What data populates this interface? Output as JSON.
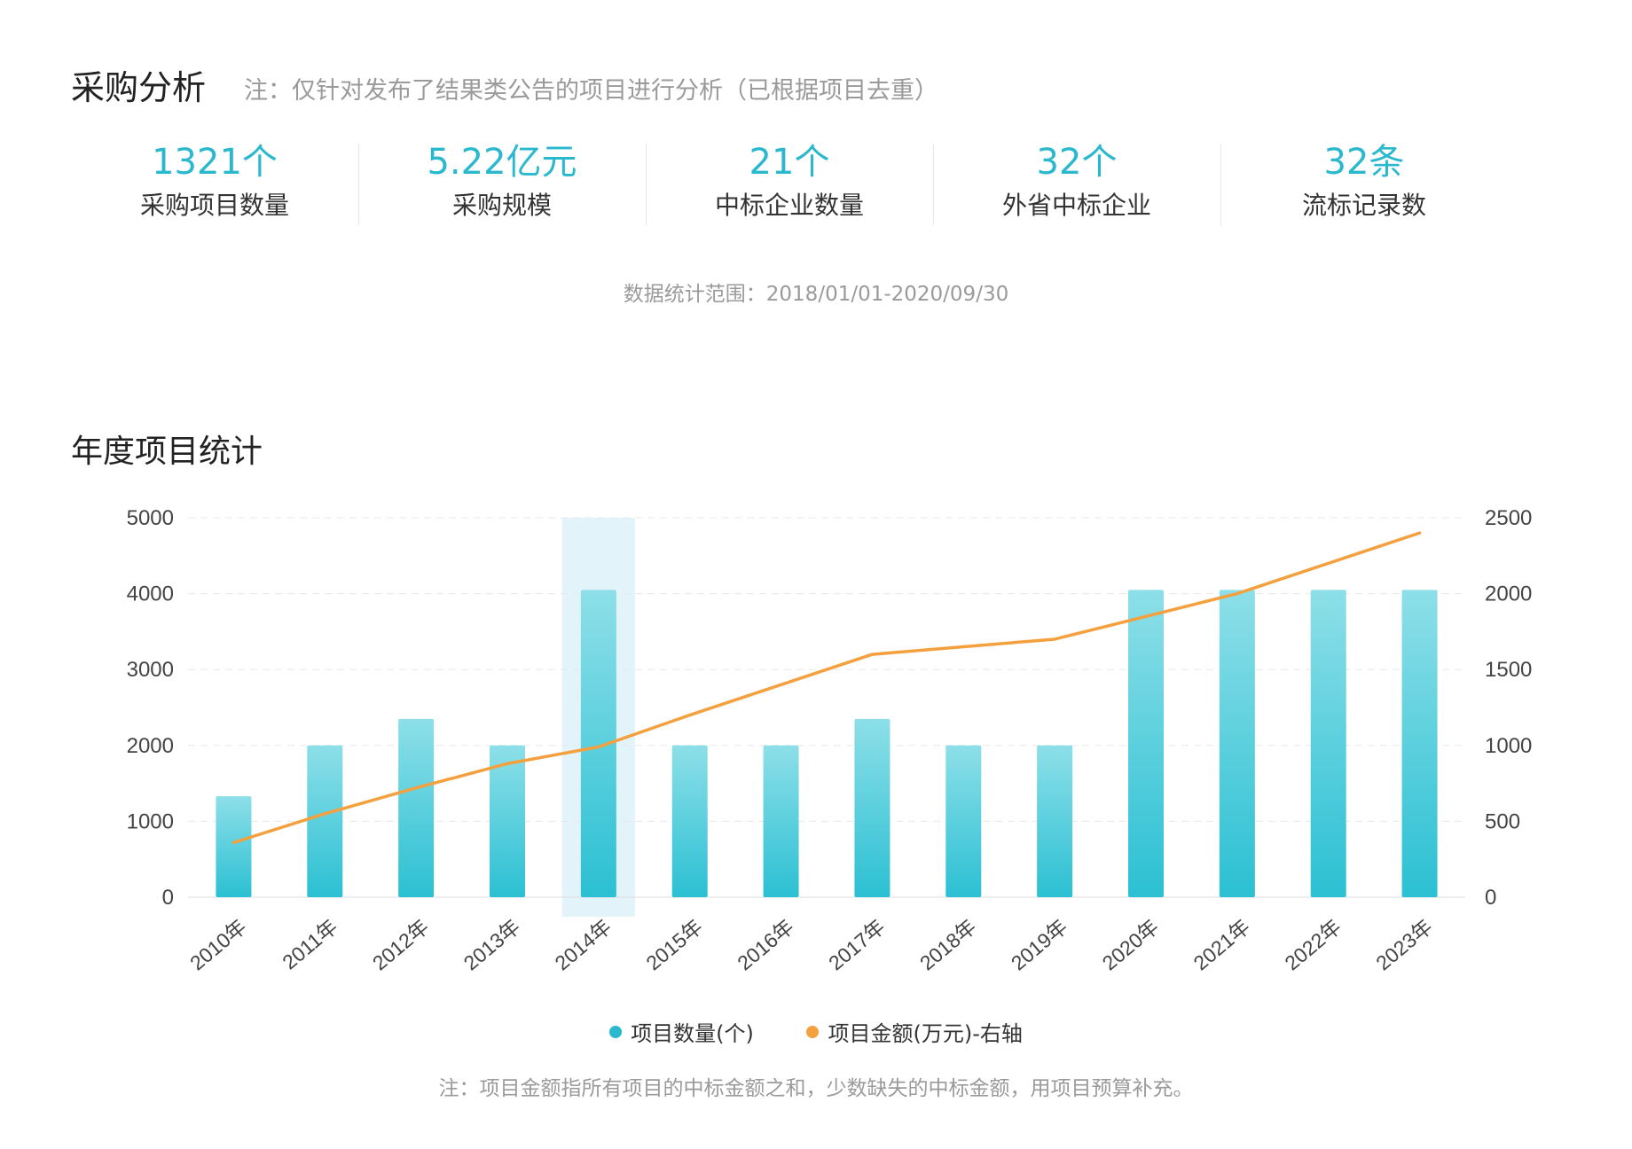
{
  "header": {
    "title": "采购分析",
    "note": "注：仅针对发布了结果类公告的项目进行分析（已根据项目去重）"
  },
  "stats": [
    {
      "value": "1321个",
      "label": "采购项目数量"
    },
    {
      "value": "5.22亿元",
      "label": "采购规模"
    },
    {
      "value": "21个",
      "label": "中标企业数量"
    },
    {
      "value": "32个",
      "label": "外省中标企业"
    },
    {
      "value": "32条",
      "label": "流标记录数"
    }
  ],
  "range_text": "数据统计范围：2018/01/01-2020/09/30",
  "chart_section_title": "年度项目统计",
  "footnote": "注：项目金额指所有项目的中标金额之和，少数缺失的中标金额，用项目预算补充。",
  "colors": {
    "accent": "#2ab8cf",
    "bar_top": "#8ddfe8",
    "bar_bottom": "#2bc0d3",
    "line": "#f5a03e",
    "highlight": "#e3f3fa"
  },
  "chart_data": {
    "type": "bar",
    "categories": [
      "2010年",
      "2011年",
      "2012年",
      "2013年",
      "2014年",
      "2015年",
      "2016年",
      "2017年",
      "2018年",
      "2019年",
      "2020年",
      "2021年",
      "2022年",
      "2023年"
    ],
    "series": [
      {
        "name": "项目数量(个)",
        "type": "bar",
        "axis": "left",
        "values": [
          1330,
          2000,
          2350,
          2000,
          4050,
          2000,
          2000,
          2350,
          2000,
          2000,
          4050,
          4050,
          4050,
          4050
        ]
      },
      {
        "name": "项目金额(万元)-右轴",
        "type": "line",
        "axis": "right",
        "values": [
          360,
          550,
          720,
          880,
          990,
          1200,
          1400,
          1600,
          1650,
          1700,
          1850,
          2000,
          2200,
          2400
        ]
      }
    ],
    "y_left": {
      "min": 0,
      "max": 5000,
      "ticks": [
        0,
        1000,
        2000,
        3000,
        4000,
        5000
      ]
    },
    "y_right": {
      "min": 0,
      "max": 2500,
      "ticks": [
        0,
        500,
        1000,
        1500,
        2000,
        2500
      ]
    },
    "highlighted_category": "2014年",
    "grid": true,
    "legend_position": "bottom"
  }
}
